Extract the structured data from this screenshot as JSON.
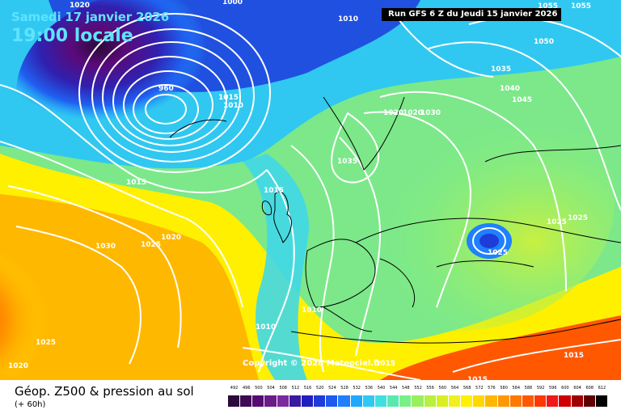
{
  "header": {
    "date": "Samedi 17 janvier 2026",
    "hour": "19:00 locale",
    "run": "Run GFS 6 Z du Jeudi 15 janvier 2026"
  },
  "footer": {
    "copyright": "Copyright © 2026 Meteociel.fr",
    "legend_title": "Géop. Z500 & pression au sol",
    "legend_subtitle": "(+ 60h)"
  },
  "scale": {
    "labels": [
      "492",
      "496",
      "500",
      "504",
      "508",
      "512",
      "516",
      "520",
      "524",
      "528",
      "532",
      "536",
      "540",
      "544",
      "548",
      "552",
      "556",
      "560",
      "564",
      "568",
      "572",
      "576",
      "580",
      "584",
      "588",
      "592",
      "596",
      "600",
      "604",
      "608",
      "612"
    ],
    "colors": [
      "#2a0a3a",
      "#3d0a55",
      "#560a73",
      "#6b1a8a",
      "#7a2a9e",
      "#3a1aa0",
      "#2020c0",
      "#1e3cd8",
      "#1e5af0",
      "#2080ff",
      "#20a8ff",
      "#30c8f0",
      "#40e0e0",
      "#5ae8b0",
      "#78f088",
      "#98f060",
      "#b8f040",
      "#d8f020",
      "#f0f020",
      "#fff000",
      "#ffd800",
      "#ffb800",
      "#ff9800",
      "#ff7800",
      "#ff5800",
      "#ff3800",
      "#f01818",
      "#d00000",
      "#a00000",
      "#600000",
      "#000000"
    ]
  },
  "pressure_labels": [
    "1020",
    "1000",
    "1010",
    "1055",
    "1055",
    "960",
    "1010",
    "1015",
    "1035",
    "1040",
    "1045",
    "1050",
    "1020",
    "1020",
    "1030",
    "1035",
    "1015",
    "1015",
    "1030",
    "1025",
    "1020",
    "1025",
    "1025",
    "1025",
    "1010",
    "1010",
    "1025",
    "1020",
    "1015",
    "1015",
    "1015"
  ]
}
